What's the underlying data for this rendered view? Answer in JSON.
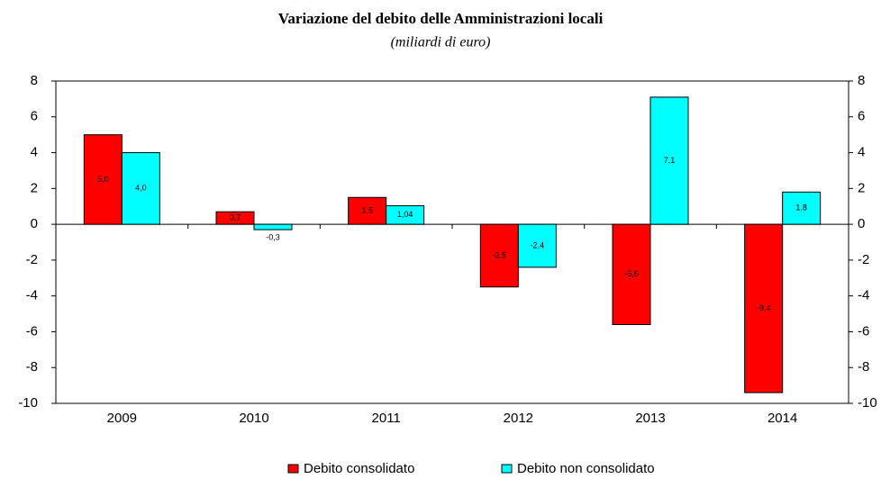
{
  "chart_data": {
    "type": "bar",
    "title": "Variazione del debito delle Amministrazioni locali",
    "subtitle": "(miliardi di euro)",
    "categories": [
      "2009",
      "2010",
      "2011",
      "2012",
      "2013",
      "2014"
    ],
    "series": [
      {
        "name": "Debito consolidato",
        "color": "#ff0000",
        "values": [
          5.0,
          0.7,
          1.5,
          -3.5,
          -5.6,
          -9.4
        ],
        "value_labels": [
          "5,0",
          "0,7",
          "1,5",
          "-3,5",
          "-5,6",
          "-9,4"
        ]
      },
      {
        "name": "Debito non consolidato",
        "color": "#00ffff",
        "values": [
          4.0,
          -0.3,
          1.04,
          -2.4,
          7.1,
          1.8
        ],
        "value_labels": [
          "4,0",
          "-0,3",
          "1,04",
          "-2,4",
          "7,1",
          "1,8"
        ]
      }
    ],
    "ylim": [
      -10,
      8
    ],
    "yticks": [
      -10,
      -8,
      -6,
      -4,
      -2,
      0,
      2,
      4,
      6,
      8
    ],
    "y2lim": [
      -10,
      8
    ],
    "y2ticks": [
      -10,
      -8,
      -6,
      -4,
      -2,
      0,
      2,
      4,
      6,
      8
    ],
    "legend": "bottom"
  }
}
